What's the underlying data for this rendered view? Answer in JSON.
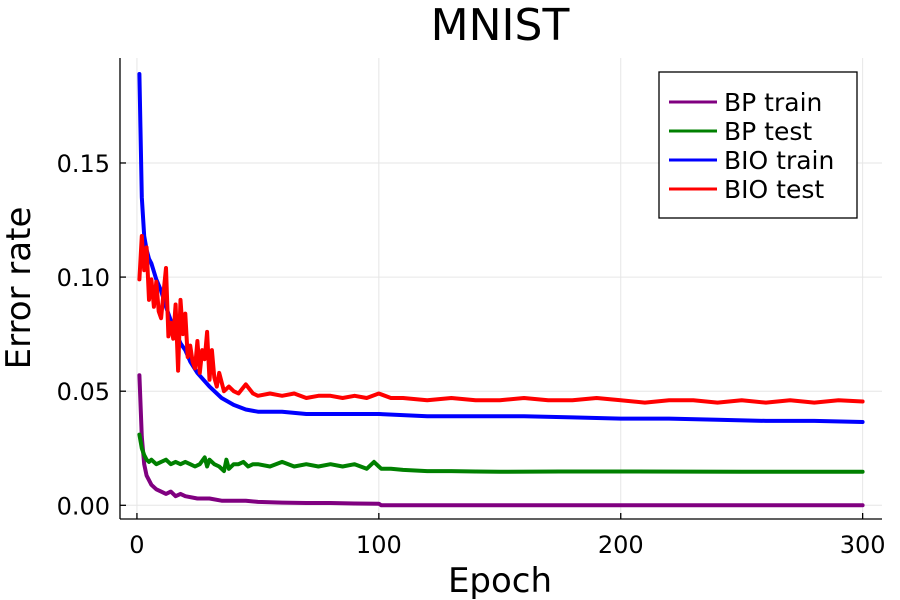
{
  "chart_data": {
    "type": "line",
    "title": "MNIST",
    "xlabel": "Epoch",
    "ylabel": "Error rate",
    "xlim": [
      -7,
      308
    ],
    "ylim": [
      -0.006,
      0.196
    ],
    "xticks": [
      0,
      100,
      200,
      300
    ],
    "xtick_labels": [
      "0",
      "100",
      "200",
      "300"
    ],
    "yticks": [
      0.0,
      0.05,
      0.1,
      0.15
    ],
    "ytick_labels": [
      "0.00",
      "0.05",
      "0.10",
      "0.15"
    ],
    "grid": true,
    "legend_position": "top-right",
    "series": [
      {
        "name": "BP train",
        "color": "#800080",
        "x": [
          1,
          2,
          3,
          4,
          5,
          6,
          8,
          10,
          12,
          14,
          16,
          18,
          20,
          25,
          30,
          35,
          40,
          45,
          50,
          60,
          70,
          80,
          90,
          100,
          101,
          150,
          200,
          250,
          300
        ],
        "y": [
          0.057,
          0.03,
          0.018,
          0.013,
          0.011,
          0.009,
          0.007,
          0.006,
          0.005,
          0.006,
          0.004,
          0.005,
          0.004,
          0.003,
          0.003,
          0.002,
          0.002,
          0.002,
          0.0015,
          0.0012,
          0.001,
          0.001,
          0.0008,
          0.0007,
          0.0,
          0.0,
          0.0,
          0.0,
          0.0
        ]
      },
      {
        "name": "BP test",
        "color": "#008000",
        "x": [
          1,
          2,
          3,
          4,
          5,
          6,
          8,
          10,
          12,
          14,
          16,
          18,
          20,
          22,
          24,
          26,
          28,
          29,
          30,
          32,
          34,
          36,
          37,
          38,
          40,
          42,
          44,
          46,
          48,
          50,
          55,
          60,
          65,
          70,
          75,
          80,
          85,
          90,
          95,
          98,
          100,
          101,
          105,
          110,
          120,
          130,
          140,
          150,
          175,
          200,
          250,
          300
        ],
        "y": [
          0.031,
          0.025,
          0.022,
          0.02,
          0.019,
          0.02,
          0.018,
          0.019,
          0.02,
          0.018,
          0.019,
          0.018,
          0.019,
          0.018,
          0.017,
          0.018,
          0.021,
          0.017,
          0.02,
          0.018,
          0.017,
          0.015,
          0.02,
          0.016,
          0.018,
          0.018,
          0.019,
          0.017,
          0.018,
          0.018,
          0.017,
          0.019,
          0.017,
          0.018,
          0.017,
          0.018,
          0.017,
          0.018,
          0.016,
          0.019,
          0.017,
          0.016,
          0.016,
          0.0155,
          0.015,
          0.015,
          0.0148,
          0.0147,
          0.0148,
          0.0148,
          0.0147,
          0.0147
        ]
      },
      {
        "name": "BIO train",
        "color": "#0000ff",
        "x": [
          1,
          2,
          3,
          4,
          5,
          6,
          8,
          10,
          12,
          14,
          16,
          18,
          20,
          22,
          25,
          30,
          35,
          40,
          45,
          50,
          60,
          70,
          80,
          90,
          100,
          120,
          140,
          160,
          180,
          200,
          220,
          240,
          260,
          280,
          300
        ],
        "y": [
          0.189,
          0.135,
          0.118,
          0.112,
          0.108,
          0.106,
          0.099,
          0.094,
          0.087,
          0.081,
          0.076,
          0.071,
          0.068,
          0.063,
          0.058,
          0.052,
          0.047,
          0.044,
          0.042,
          0.041,
          0.041,
          0.04,
          0.04,
          0.04,
          0.04,
          0.039,
          0.039,
          0.039,
          0.0385,
          0.038,
          0.038,
          0.0375,
          0.037,
          0.037,
          0.0365
        ]
      },
      {
        "name": "BIO test",
        "color": "#ff0000",
        "x": [
          1,
          2,
          3,
          4,
          5,
          6,
          7,
          8,
          9,
          10,
          11,
          12,
          13,
          14,
          15,
          16,
          17,
          18,
          19,
          20,
          21,
          22,
          23,
          24,
          25,
          26,
          27,
          28,
          29,
          30,
          31,
          32,
          33,
          34,
          35,
          36,
          38,
          40,
          42,
          45,
          48,
          50,
          55,
          60,
          65,
          70,
          75,
          80,
          85,
          90,
          95,
          100,
          105,
          110,
          120,
          130,
          140,
          150,
          160,
          170,
          180,
          190,
          200,
          210,
          220,
          230,
          240,
          250,
          260,
          270,
          280,
          290,
          300
        ],
        "y": [
          0.099,
          0.118,
          0.103,
          0.113,
          0.09,
          0.099,
          0.087,
          0.098,
          0.085,
          0.082,
          0.093,
          0.104,
          0.074,
          0.08,
          0.073,
          0.088,
          0.059,
          0.09,
          0.075,
          0.084,
          0.065,
          0.07,
          0.063,
          0.06,
          0.072,
          0.058,
          0.068,
          0.064,
          0.076,
          0.055,
          0.068,
          0.056,
          0.052,
          0.058,
          0.054,
          0.05,
          0.052,
          0.05,
          0.049,
          0.053,
          0.049,
          0.048,
          0.049,
          0.048,
          0.049,
          0.047,
          0.048,
          0.048,
          0.047,
          0.048,
          0.047,
          0.049,
          0.047,
          0.047,
          0.046,
          0.047,
          0.046,
          0.046,
          0.047,
          0.046,
          0.046,
          0.047,
          0.046,
          0.045,
          0.046,
          0.046,
          0.045,
          0.046,
          0.045,
          0.046,
          0.045,
          0.046,
          0.0455
        ]
      }
    ]
  }
}
